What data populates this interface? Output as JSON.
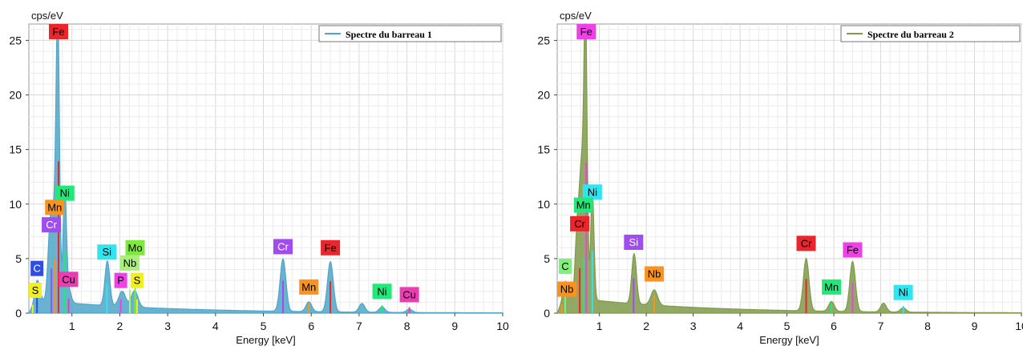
{
  "chart_data": [
    {
      "type": "area",
      "ylabel": "cps/eV",
      "xlabel": "Energy [keV]",
      "xlim": [
        0.1,
        10
      ],
      "ylim": [
        0,
        26.5
      ],
      "x_ticks": [
        "1",
        "2",
        "3",
        "4",
        "5",
        "6",
        "7",
        "8",
        "9",
        "10"
      ],
      "y_ticks": [
        "0",
        "5",
        "10",
        "15",
        "20",
        "25"
      ],
      "grid": true,
      "legend_position": "top-right",
      "series": [
        {
          "name": "Spectre du barreau 1",
          "color": "#4fa6c8",
          "background": 1.2,
          "peaks": [
            [
              0.28,
              1.8,
              0.05
            ],
            [
              0.52,
              3.5,
              0.04
            ],
            [
              0.57,
              5.5,
              0.04
            ],
            [
              0.64,
              6.0,
              0.04
            ],
            [
              0.705,
              25.5,
              0.035
            ],
            [
              0.85,
              10.0,
              0.035
            ],
            [
              0.93,
              1.3,
              0.05
            ],
            [
              1.74,
              4.1,
              0.05
            ],
            [
              2.05,
              1.4,
              0.07
            ],
            [
              2.31,
              1.5,
              0.07
            ],
            [
              5.41,
              4.8,
              0.06
            ],
            [
              5.95,
              0.9,
              0.06
            ],
            [
              6.4,
              4.6,
              0.06
            ],
            [
              7.06,
              0.8,
              0.06
            ],
            [
              7.48,
              0.5,
              0.06
            ],
            [
              8.05,
              0.3,
              0.06
            ]
          ]
        }
      ],
      "peak_labels": [
        {
          "text": "Fe",
          "x": 0.72,
          "y": 25.3,
          "bg": "#e8262b",
          "fg": "#000000"
        },
        {
          "text": "Ni",
          "x": 0.85,
          "y": 10.3,
          "bg": "#21e878",
          "fg": "#000000"
        },
        {
          "text": "Mn",
          "x": 0.64,
          "y": 9.0,
          "bg": "#f7931e",
          "fg": "#000000"
        },
        {
          "text": "Cr",
          "x": 0.57,
          "y": 7.4,
          "bg": "#a14cf0",
          "fg": "#ffffff"
        },
        {
          "text": "C",
          "x": 0.27,
          "y": 3.4,
          "bg": "#2f4de0",
          "fg": "#ffffff"
        },
        {
          "text": "S",
          "x": 0.18,
          "y": 1.4,
          "bg": "#f1ef1d",
          "fg": "#000000"
        },
        {
          "text": "Cu",
          "x": 0.93,
          "y": 2.4,
          "bg": "#ea3db1",
          "fg": "#000000"
        },
        {
          "text": "Si",
          "x": 1.73,
          "y": 4.9,
          "bg": "#2ee5f0",
          "fg": "#000000"
        },
        {
          "text": "Mo",
          "x": 2.32,
          "y": 5.3,
          "bg": "#7fe83c",
          "fg": "#000000"
        },
        {
          "text": "Nb",
          "x": 2.21,
          "y": 3.9,
          "bg": "#a8f07a",
          "fg": "#000000"
        },
        {
          "text": "P",
          "x": 2.02,
          "y": 2.3,
          "bg": "#ee41e6",
          "fg": "#000000"
        },
        {
          "text": "S",
          "x": 2.36,
          "y": 2.3,
          "bg": "#f1ef1d",
          "fg": "#000000"
        },
        {
          "text": "Cr",
          "x": 5.41,
          "y": 5.4,
          "bg": "#a14cf0",
          "fg": "#ffffff"
        },
        {
          "text": "Fe",
          "x": 6.4,
          "y": 5.3,
          "bg": "#e8262b",
          "fg": "#000000"
        },
        {
          "text": "Mn",
          "x": 5.95,
          "y": 1.7,
          "bg": "#f7931e",
          "fg": "#000000"
        },
        {
          "text": "Ni",
          "x": 7.48,
          "y": 1.3,
          "bg": "#21e878",
          "fg": "#000000"
        },
        {
          "text": "Cu",
          "x": 8.05,
          "y": 1.0,
          "bg": "#ea3db1",
          "fg": "#000000"
        }
      ]
    },
    {
      "type": "area",
      "ylabel": "cps/eV",
      "xlabel": "Energy [keV]",
      "xlim": [
        0.1,
        10
      ],
      "ylim": [
        0,
        26.5
      ],
      "x_ticks": [
        "1",
        "2",
        "3",
        "4",
        "5",
        "6",
        "7",
        "8",
        "9",
        "10"
      ],
      "y_ticks": [
        "0",
        "5",
        "10",
        "15",
        "20",
        "25"
      ],
      "grid": true,
      "legend_position": "top-right",
      "series": [
        {
          "name": "Spectre du barreau 2",
          "color": "#7f9a4a",
          "background": 1.5,
          "peaks": [
            [
              0.28,
              1.4,
              0.05
            ],
            [
              0.52,
              5.5,
              0.04
            ],
            [
              0.59,
              6.8,
              0.04
            ],
            [
              0.64,
              7.5,
              0.04
            ],
            [
              0.705,
              25.0,
              0.035
            ],
            [
              0.85,
              10.0,
              0.035
            ],
            [
              1.74,
              4.6,
              0.05
            ],
            [
              2.17,
              1.4,
              0.07
            ],
            [
              5.41,
              4.8,
              0.06
            ],
            [
              5.95,
              0.9,
              0.06
            ],
            [
              6.4,
              4.6,
              0.06
            ],
            [
              7.06,
              0.8,
              0.06
            ],
            [
              7.48,
              0.4,
              0.06
            ]
          ]
        }
      ],
      "peak_labels": [
        {
          "text": "Fe",
          "x": 0.72,
          "y": 25.1,
          "bg": "#ee41e6",
          "fg": "#000000"
        },
        {
          "text": "Ni",
          "x": 0.85,
          "y": 10.4,
          "bg": "#2ee5f0",
          "fg": "#000000"
        },
        {
          "text": "Mn",
          "x": 0.66,
          "y": 9.2,
          "bg": "#21e878",
          "fg": "#000000"
        },
        {
          "text": "Cr",
          "x": 0.58,
          "y": 7.5,
          "bg": "#e8262b",
          "fg": "#000000"
        },
        {
          "text": "C",
          "x": 0.27,
          "y": 3.6,
          "bg": "#7ff07a",
          "fg": "#000000"
        },
        {
          "text": "Nb",
          "x": 0.2,
          "y": 1.5,
          "bg": "#f7931e",
          "fg": "#000000"
        },
        {
          "text": "Si",
          "x": 1.73,
          "y": 5.8,
          "bg": "#a14cf0",
          "fg": "#ffffff"
        },
        {
          "text": "Nb",
          "x": 2.17,
          "y": 2.9,
          "bg": "#f7931e",
          "fg": "#000000"
        },
        {
          "text": "Cr",
          "x": 5.41,
          "y": 5.7,
          "bg": "#e8262b",
          "fg": "#000000"
        },
        {
          "text": "Fe",
          "x": 6.4,
          "y": 5.1,
          "bg": "#ee41e6",
          "fg": "#000000"
        },
        {
          "text": "Mn",
          "x": 5.95,
          "y": 1.7,
          "bg": "#21e878",
          "fg": "#000000"
        },
        {
          "text": "Ni",
          "x": 7.48,
          "y": 1.2,
          "bg": "#2ee5f0",
          "fg": "#000000"
        }
      ]
    }
  ]
}
